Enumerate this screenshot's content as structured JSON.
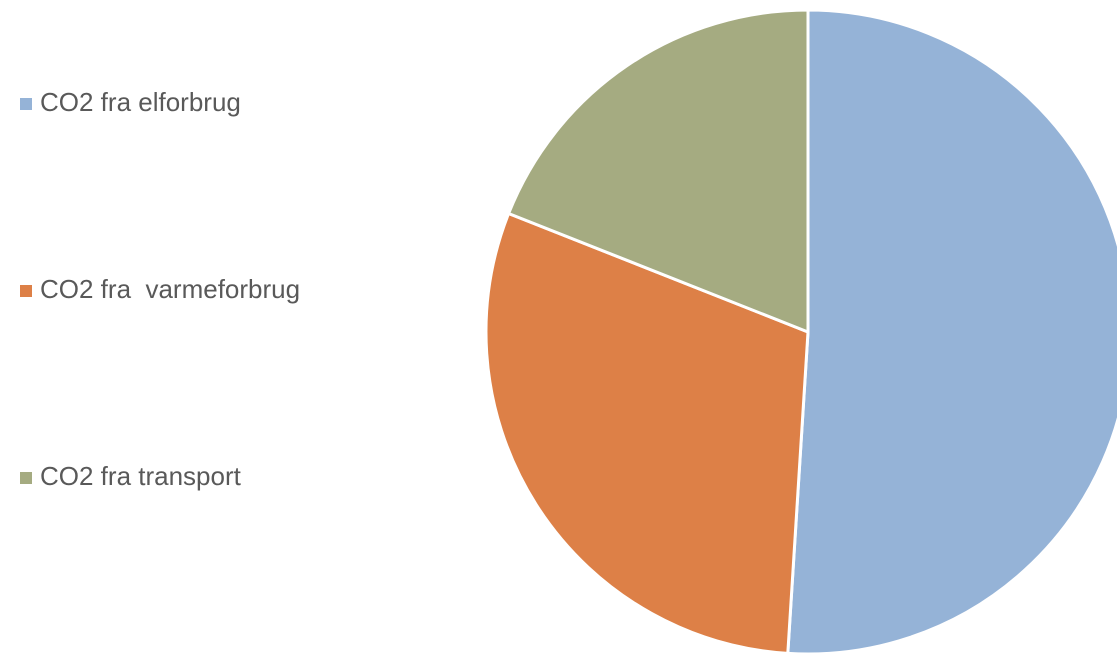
{
  "chart_data": {
    "type": "pie",
    "categories": [
      "CO2 fra elforbrug",
      "CO2 fra  varmeforbrug",
      "CO2 fra transport"
    ],
    "values": [
      51,
      30,
      19
    ],
    "colors": [
      "#95b3d7",
      "#dd8047",
      "#a5ab81"
    ],
    "legend": "left"
  }
}
